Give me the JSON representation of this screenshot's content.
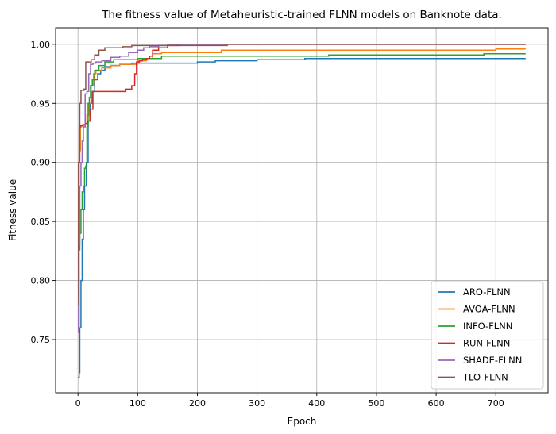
{
  "chart_data": {
    "type": "line",
    "title": "The fitness value of Metaheuristic-trained FLNN models on Banknote data.",
    "xlabel": "Epoch",
    "ylabel": "Fitness value",
    "xlim": [
      -37.5,
      787.5
    ],
    "ylim": [
      0.705,
      1.014
    ],
    "xticks": [
      0,
      100,
      200,
      300,
      400,
      500,
      600,
      700
    ],
    "yticks": [
      0.75,
      0.8,
      0.85,
      0.9,
      0.95,
      1.0
    ],
    "ytick_labels": [
      "0.75",
      "0.80",
      "0.85",
      "0.90",
      "0.95",
      "1.00"
    ],
    "grid": true,
    "legend_position": "lower-right",
    "series": [
      {
        "name": "ARO-FLNN",
        "color": "#1f77b4",
        "x": [
          0,
          2,
          3,
          5,
          7,
          9,
          11,
          14,
          17,
          20,
          24,
          28,
          33,
          38,
          45,
          55,
          70,
          90,
          120,
          160,
          200,
          230,
          260,
          300,
          350,
          380,
          420,
          500,
          600,
          700,
          750
        ],
        "y": [
          0.718,
          0.722,
          0.76,
          0.8,
          0.835,
          0.86,
          0.88,
          0.9,
          0.935,
          0.95,
          0.96,
          0.97,
          0.975,
          0.978,
          0.981,
          0.982,
          0.983,
          0.984,
          0.984,
          0.984,
          0.985,
          0.986,
          0.986,
          0.987,
          0.987,
          0.988,
          0.988,
          0.988,
          0.988,
          0.988,
          0.988
        ]
      },
      {
        "name": "AVOA-FLNN",
        "color": "#ff7f0e",
        "x": [
          0,
          2,
          4,
          6,
          9,
          12,
          15,
          18,
          22,
          26,
          30,
          40,
          55,
          70,
          85,
          100,
          115,
          125,
          140,
          160,
          200,
          240,
          300,
          400,
          500,
          600,
          700,
          750
        ],
        "y": [
          0.76,
          0.91,
          0.93,
          0.931,
          0.931,
          0.933,
          0.94,
          0.95,
          0.965,
          0.975,
          0.978,
          0.98,
          0.982,
          0.983,
          0.983,
          0.986,
          0.988,
          0.992,
          0.993,
          0.993,
          0.993,
          0.995,
          0.995,
          0.995,
          0.995,
          0.995,
          0.996,
          0.996
        ]
      },
      {
        "name": "INFO-FLNN",
        "color": "#2ca02c",
        "x": [
          0,
          1,
          3,
          5,
          7,
          9,
          11,
          13,
          15,
          17,
          19,
          21,
          24,
          28,
          35,
          45,
          60,
          80,
          100,
          120,
          140,
          200,
          300,
          420,
          500,
          600,
          680,
          750
        ],
        "y": [
          0.79,
          0.826,
          0.84,
          0.86,
          0.875,
          0.88,
          0.895,
          0.897,
          0.93,
          0.95,
          0.955,
          0.965,
          0.97,
          0.978,
          0.982,
          0.985,
          0.987,
          0.987,
          0.988,
          0.988,
          0.99,
          0.99,
          0.99,
          0.991,
          0.991,
          0.991,
          0.992,
          0.992
        ]
      },
      {
        "name": "RUN-FLNN",
        "color": "#d62728",
        "x": [
          0,
          1,
          2,
          4,
          6,
          8,
          12,
          16,
          20,
          25,
          30,
          40,
          60,
          80,
          90,
          95,
          98,
          103,
          108,
          115,
          120,
          125,
          135,
          150,
          170,
          200,
          300,
          400,
          500,
          600,
          700,
          750
        ],
        "y": [
          0.81,
          0.9,
          0.93,
          0.931,
          0.931,
          0.932,
          0.933,
          0.935,
          0.945,
          0.96,
          0.96,
          0.96,
          0.96,
          0.962,
          0.965,
          0.975,
          0.985,
          0.986,
          0.987,
          0.988,
          0.99,
          0.995,
          0.997,
          0.999,
          1.0,
          1.0,
          1.0,
          1.0,
          1.0,
          1.0,
          1.0,
          1.0
        ]
      },
      {
        "name": "SHADE-FLNN",
        "color": "#9467bd",
        "x": [
          0,
          1,
          3,
          5,
          7,
          9,
          12,
          15,
          18,
          21,
          25,
          30,
          40,
          55,
          70,
          85,
          100,
          110,
          120,
          135,
          150,
          200,
          300,
          400,
          500,
          600,
          700,
          750
        ],
        "y": [
          0.756,
          0.83,
          0.88,
          0.9,
          0.918,
          0.93,
          0.958,
          0.96,
          0.975,
          0.983,
          0.984,
          0.985,
          0.986,
          0.989,
          0.99,
          0.993,
          0.995,
          0.997,
          0.998,
          0.999,
          1.0,
          1.0,
          1.0,
          1.0,
          1.0,
          1.0,
          1.0,
          1.0
        ]
      },
      {
        "name": "TLO-FLNN",
        "color": "#8c564b",
        "x": [
          0,
          1,
          3,
          5,
          7,
          10,
          13,
          17,
          22,
          28,
          35,
          45,
          55,
          65,
          75,
          90,
          110,
          130,
          150,
          200,
          250,
          300,
          400,
          500,
          600,
          700,
          750
        ],
        "y": [
          0.78,
          0.9,
          0.95,
          0.961,
          0.961,
          0.962,
          0.985,
          0.985,
          0.987,
          0.991,
          0.995,
          0.997,
          0.997,
          0.997,
          0.998,
          0.999,
          0.999,
          0.999,
          0.999,
          0.999,
          1.0,
          1.0,
          1.0,
          1.0,
          1.0,
          1.0,
          1.0
        ]
      }
    ]
  }
}
